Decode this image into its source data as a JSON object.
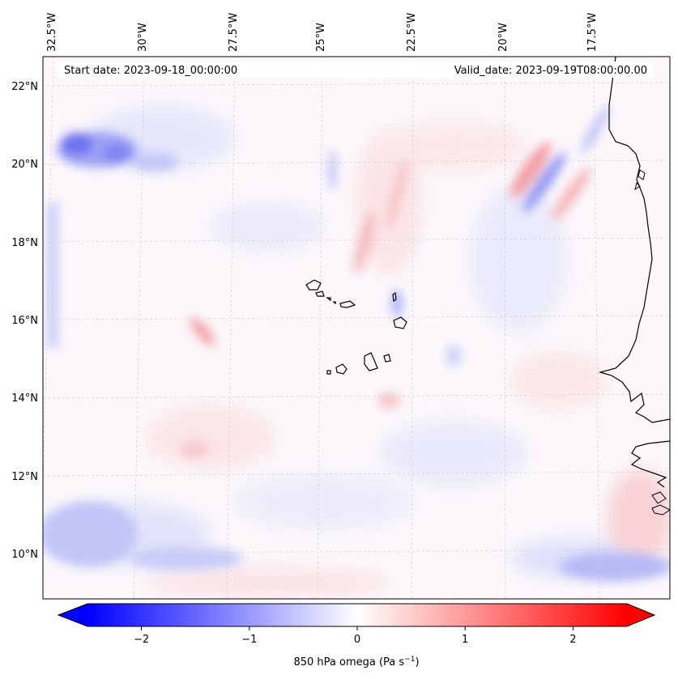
{
  "map": {
    "start_date_label": "Start date: 2023-09-18_00:00:00",
    "valid_date_label": "Valid_date: 2023-09-19T08:00:00.00",
    "lon_labels": [
      "32.5°W",
      "30°W",
      "27.5°W",
      "25°W",
      "22.5°W",
      "20°W",
      "17.5°W"
    ],
    "lat_labels": [
      "22°N",
      "20°N",
      "18°N",
      "16°N",
      "14°N",
      "12°N",
      "10°N"
    ],
    "extent": {
      "lon_min": -33,
      "lon_max": -16,
      "lat_min": 8.8,
      "lat_max": 22.8
    }
  },
  "colorbar": {
    "label": "850 hPa omega (Pa s",
    "label_sup": "−1",
    "label_end": ")",
    "ticks": [
      "−2",
      "−1",
      "0",
      "1",
      "2"
    ],
    "tick_values": [
      -2,
      -1,
      0,
      1,
      2
    ],
    "range": [
      -2.5,
      2.5
    ],
    "colors": {
      "low": "#0000ff",
      "mid": "#ffffff",
      "high": "#ff0000"
    }
  }
}
